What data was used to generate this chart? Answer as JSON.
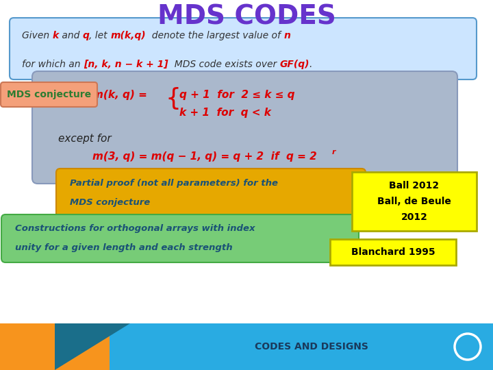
{
  "title": "MDS CODES",
  "title_color": "#6633cc",
  "title_fontsize": 28,
  "bg_color": "#ffffff",
  "footer_bg_color": "#29abe2",
  "footer_orange_color": "#f7941d",
  "footer_teal_color": "#1a6e8a",
  "footer_text": "CODES AND DESIGNS",
  "footer_text_color": "#1a3a5c",
  "box1_bg": "#cce5ff",
  "box1_border": "#5599cc",
  "box2_bg": "#aab8cc",
  "box2_border": "#8899bb",
  "label_mds_bg": "#f4a07a",
  "label_mds_border": "#cc7755",
  "label_mds_text": "MDS conjecture",
  "label_mds_color": "#2e7d32",
  "box3_bg": "#e6a800",
  "box3_border": "#cc8800",
  "box3_text_color": "#1a5276",
  "box4_bg": "#77cc77",
  "box4_border": "#44aa44",
  "box4_text_color": "#1a5276",
  "ref1_bg": "#ffff00",
  "ref1_border": "#aaaa00",
  "ref1_color": "#000000",
  "ref2_bg": "#ffff00",
  "ref2_border": "#aaaa00",
  "ref2_color": "#000000",
  "red": "#dd0000",
  "black": "#222222"
}
